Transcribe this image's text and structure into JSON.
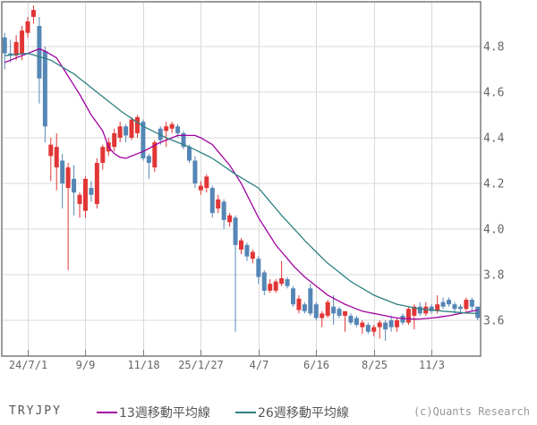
{
  "footer": {
    "symbol_label": "TRYJPY",
    "copyright": "(c)Quants Research"
  },
  "legend": {
    "ma13_label": "13週移動平均線",
    "ma26_label": "26週移動平均線"
  },
  "colors": {
    "up_candle": "#e23636",
    "down_candle": "#5586b5",
    "ma13": "#a000a0",
    "ma26": "#2c8080",
    "grid": "#d9d9d9",
    "border": "#7a7a7a",
    "tick": "#7a7a7a",
    "axis_text": "#666666",
    "background": "#ffffff"
  },
  "chart_data": {
    "type": "candlestick",
    "title": "",
    "instrument": "TRYJPY",
    "interval": "weekly",
    "grid": true,
    "y_ticks": [
      4.8,
      4.6,
      4.4,
      4.2,
      4.0,
      3.8,
      3.6
    ],
    "ylim": [
      3.44,
      5.0
    ],
    "x_tick_labels": [
      "24/7/1",
      "9/9",
      "11/18",
      "25/1/27",
      "4/7",
      "6/16",
      "8/25",
      "11/3"
    ],
    "x_tick_indices": [
      4,
      14,
      24,
      34,
      44,
      54,
      64,
      74
    ],
    "candles_ohlc_format": [
      "date",
      "open",
      "high",
      "low",
      "close"
    ],
    "candles": [
      [
        "24/6/3",
        4.84,
        4.86,
        4.7,
        4.77
      ],
      [
        "6/10",
        4.77,
        4.83,
        4.73,
        4.76
      ],
      [
        "6/17",
        4.76,
        4.85,
        4.74,
        4.82
      ],
      [
        "6/24",
        4.77,
        4.89,
        4.74,
        4.87
      ],
      [
        "7/1",
        4.86,
        4.93,
        4.84,
        4.91
      ],
      [
        "7/8",
        4.93,
        4.98,
        4.9,
        4.96
      ],
      [
        "7/15",
        4.89,
        4.93,
        4.55,
        4.66
      ],
      [
        "7/22",
        4.78,
        4.8,
        4.38,
        4.45
      ],
      [
        "7/29",
        4.32,
        4.4,
        4.21,
        4.37
      ],
      [
        "8/5",
        4.27,
        4.42,
        4.17,
        4.36
      ],
      [
        "8/12",
        4.3,
        4.33,
        4.09,
        4.2
      ],
      [
        "8/19",
        4.18,
        4.29,
        3.82,
        4.27
      ],
      [
        "8/26",
        4.22,
        4.28,
        4.06,
        4.16
      ],
      [
        "9/2",
        4.11,
        4.16,
        4.05,
        4.15
      ],
      [
        "9/9",
        4.08,
        4.23,
        4.05,
        4.22
      ],
      [
        "9/16",
        4.18,
        4.21,
        4.12,
        4.15
      ],
      [
        "9/23",
        4.11,
        4.31,
        4.09,
        4.29
      ],
      [
        "9/30",
        4.29,
        4.37,
        4.26,
        4.36
      ],
      [
        "10/7",
        4.34,
        4.4,
        4.32,
        4.38
      ],
      [
        "10/14",
        4.36,
        4.44,
        4.34,
        4.42
      ],
      [
        "10/21",
        4.4,
        4.47,
        4.38,
        4.45
      ],
      [
        "10/28",
        4.45,
        4.46,
        4.38,
        4.41
      ],
      [
        "11/4",
        4.4,
        4.49,
        4.39,
        4.48
      ],
      [
        "11/11",
        4.42,
        4.5,
        4.4,
        4.49
      ],
      [
        "11/18",
        4.47,
        4.48,
        4.3,
        4.31
      ],
      [
        "11/25",
        4.32,
        4.33,
        4.22,
        4.29
      ],
      [
        "12/2",
        4.27,
        4.39,
        4.25,
        4.38
      ],
      [
        "12/9",
        4.44,
        4.45,
        4.37,
        4.39
      ],
      [
        "12/16",
        4.43,
        4.47,
        4.36,
        4.45
      ],
      [
        "12/23",
        4.44,
        4.47,
        4.42,
        4.46
      ],
      [
        "12/30",
        4.45,
        4.46,
        4.4,
        4.42
      ],
      [
        "25/1/6",
        4.42,
        4.43,
        4.35,
        4.36
      ],
      [
        "1/13",
        4.36,
        4.37,
        4.29,
        4.3
      ],
      [
        "1/20",
        4.3,
        4.32,
        4.18,
        4.2
      ],
      [
        "1/27",
        4.17,
        4.21,
        4.15,
        4.19
      ],
      [
        "2/3",
        4.18,
        4.24,
        4.16,
        4.23
      ],
      [
        "2/10",
        4.18,
        4.19,
        4.05,
        4.07
      ],
      [
        "2/17",
        4.09,
        4.15,
        4.07,
        4.13
      ],
      [
        "2/24",
        4.12,
        4.13,
        4.0,
        4.04
      ],
      [
        "3/3",
        4.03,
        4.07,
        4.01,
        4.06
      ],
      [
        "3/10",
        4.05,
        4.06,
        3.55,
        3.93
      ],
      [
        "3/17",
        3.91,
        3.96,
        3.89,
        3.95
      ],
      [
        "3/24",
        3.93,
        3.94,
        3.86,
        3.88
      ],
      [
        "3/31",
        3.87,
        3.91,
        3.85,
        3.9
      ],
      [
        "4/7",
        3.87,
        3.88,
        3.76,
        3.79
      ],
      [
        "4/14",
        3.81,
        3.82,
        3.71,
        3.73
      ],
      [
        "4/21",
        3.73,
        3.78,
        3.72,
        3.76
      ],
      [
        "4/28",
        3.73,
        3.78,
        3.72,
        3.77
      ],
      [
        "5/5",
        3.76,
        3.86,
        3.75,
        3.785
      ],
      [
        "5/12",
        3.78,
        3.79,
        3.74,
        3.75
      ],
      [
        "5/19",
        3.74,
        3.75,
        3.66,
        3.67
      ],
      [
        "5/26",
        3.645,
        3.71,
        3.63,
        3.695
      ],
      [
        "6/2",
        3.67,
        3.68,
        3.63,
        3.64
      ],
      [
        "6/9",
        3.74,
        3.76,
        3.62,
        3.63
      ],
      [
        "6/16",
        3.67,
        3.68,
        3.6,
        3.61
      ],
      [
        "6/23",
        3.61,
        3.64,
        3.57,
        3.63
      ],
      [
        "6/30",
        3.62,
        3.69,
        3.61,
        3.68
      ],
      [
        "7/7",
        3.66,
        3.71,
        3.58,
        3.63
      ],
      [
        "7/14",
        3.65,
        3.66,
        3.61,
        3.62
      ],
      [
        "7/21",
        3.62,
        3.64,
        3.55,
        3.64
      ],
      [
        "7/28",
        3.62,
        3.63,
        3.58,
        3.59
      ],
      [
        "8/4",
        3.61,
        3.62,
        3.57,
        3.58
      ],
      [
        "8/11",
        3.57,
        3.6,
        3.54,
        3.59
      ],
      [
        "8/18",
        3.58,
        3.59,
        3.54,
        3.55
      ],
      [
        "8/25",
        3.55,
        3.58,
        3.53,
        3.57
      ],
      [
        "9/1",
        3.57,
        3.6,
        3.52,
        3.59
      ],
      [
        "9/8",
        3.59,
        3.6,
        3.51,
        3.56
      ],
      [
        "9/15",
        3.6,
        3.62,
        3.55,
        3.57
      ],
      [
        "9/22",
        3.57,
        3.61,
        3.55,
        3.6
      ],
      [
        "9/29",
        3.62,
        3.63,
        3.58,
        3.59
      ],
      [
        "10/6",
        3.59,
        3.66,
        3.58,
        3.65
      ],
      [
        "10/13",
        3.62,
        3.67,
        3.56,
        3.66
      ],
      [
        "10/20",
        3.66,
        3.68,
        3.62,
        3.63
      ],
      [
        "10/27",
        3.63,
        3.68,
        3.62,
        3.66
      ],
      [
        "11/3",
        3.66,
        3.67,
        3.63,
        3.64
      ],
      [
        "11/10",
        3.64,
        3.71,
        3.63,
        3.67
      ],
      [
        "11/17",
        3.68,
        3.7,
        3.65,
        3.66
      ],
      [
        "11/24",
        3.69,
        3.7,
        3.66,
        3.67
      ],
      [
        "12/1",
        3.67,
        3.68,
        3.63,
        3.65
      ],
      [
        "12/8",
        3.66,
        3.67,
        3.63,
        3.65
      ],
      [
        "12/15",
        3.65,
        3.7,
        3.64,
        3.69
      ],
      [
        "12/22",
        3.69,
        3.7,
        3.64,
        3.66
      ],
      [
        "12/29",
        3.66,
        3.66,
        3.6,
        3.61
      ]
    ],
    "series": [
      {
        "name": "13週移動平均線",
        "color": "#a000a0",
        "values": [
          4.73,
          4.74,
          4.75,
          4.76,
          4.77,
          4.78,
          4.79,
          4.78,
          4.765,
          4.75,
          4.71,
          4.67,
          4.63,
          4.59,
          4.545,
          4.5,
          4.465,
          4.43,
          4.36,
          4.33,
          4.315,
          4.31,
          4.32,
          4.33,
          4.34,
          4.353,
          4.367,
          4.38,
          4.39,
          4.4,
          4.41,
          4.41,
          4.41,
          4.41,
          4.4,
          4.385,
          4.37,
          4.34,
          4.31,
          4.28,
          4.24,
          4.2,
          4.15,
          4.1,
          4.05,
          4.01,
          3.97,
          3.93,
          3.9,
          3.87,
          3.84,
          3.815,
          3.79,
          3.77,
          3.75,
          3.73,
          3.71,
          3.697,
          3.683,
          3.67,
          3.66,
          3.65,
          3.64,
          3.635,
          3.63,
          3.625,
          3.62,
          3.615,
          3.61,
          3.608,
          3.607,
          3.605,
          3.606,
          3.608,
          3.61,
          3.613,
          3.617,
          3.62,
          3.625,
          3.63,
          3.635,
          3.64,
          3.645
        ]
      },
      {
        "name": "26週移動平均線",
        "color": "#2c8080",
        "values": [
          4.76,
          4.763,
          4.766,
          4.768,
          4.77,
          4.763,
          4.755,
          4.748,
          4.74,
          4.725,
          4.71,
          4.695,
          4.68,
          4.66,
          4.64,
          4.62,
          4.6,
          4.58,
          4.56,
          4.54,
          4.52,
          4.502,
          4.485,
          4.468,
          4.45,
          4.438,
          4.425,
          4.413,
          4.4,
          4.39,
          4.38,
          4.37,
          4.36,
          4.348,
          4.335,
          4.323,
          4.31,
          4.293,
          4.275,
          4.258,
          4.24,
          4.225,
          4.21,
          4.195,
          4.18,
          4.15,
          4.12,
          4.09,
          4.06,
          4.033,
          4.005,
          3.978,
          3.95,
          3.925,
          3.9,
          3.875,
          3.85,
          3.83,
          3.81,
          3.79,
          3.77,
          3.755,
          3.74,
          3.725,
          3.71,
          3.7,
          3.69,
          3.68,
          3.67,
          3.665,
          3.66,
          3.655,
          3.65,
          3.648,
          3.645,
          3.643,
          3.64,
          3.638,
          3.636,
          3.634,
          3.632,
          3.631,
          3.63
        ]
      }
    ]
  }
}
